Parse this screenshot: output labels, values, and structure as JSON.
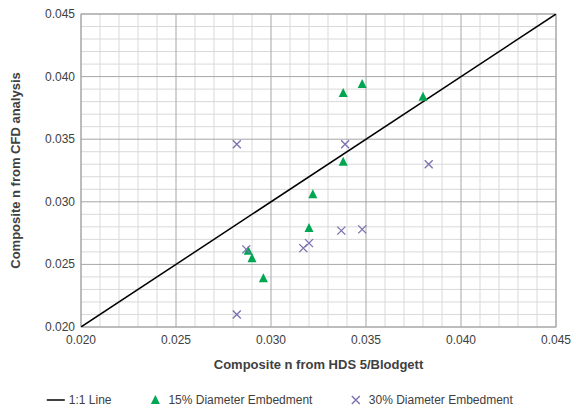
{
  "chart_data": {
    "type": "scatter",
    "x_label": "Composite n from HDS 5/Blodgett",
    "y_label": "Composite n from CFD analysis",
    "xlim": [
      0.02,
      0.045
    ],
    "ylim": [
      0.02,
      0.045
    ],
    "xticks": [
      {
        "value": 0.02,
        "label": "0.020"
      },
      {
        "value": 0.025,
        "label": "0.025"
      },
      {
        "value": 0.03,
        "label": "0.030"
      },
      {
        "value": 0.035,
        "label": "0.035"
      },
      {
        "value": 0.04,
        "label": "0.040"
      },
      {
        "value": 0.045,
        "label": "0.045"
      }
    ],
    "yticks": [
      {
        "value": 0.02,
        "label": "0.020"
      },
      {
        "value": 0.025,
        "label": "0.025"
      },
      {
        "value": 0.03,
        "label": "0.030"
      },
      {
        "value": 0.035,
        "label": "0.035"
      },
      {
        "value": 0.04,
        "label": "0.040"
      },
      {
        "value": 0.045,
        "label": "0.045"
      }
    ],
    "grid": true,
    "legend": "bottom",
    "series": [
      {
        "name": "1:1 Line",
        "type": "line",
        "color": "#000000",
        "line_style": "solid",
        "x": [
          0.02,
          0.045
        ],
        "values": [
          0.02,
          0.045
        ]
      },
      {
        "name": "15% Diameter Embedment",
        "type": "scatter",
        "color": "#00a651",
        "marker": "triangle",
        "x": [
          0.0288,
          0.029,
          0.0296,
          0.032,
          0.0322,
          0.0338,
          0.0338,
          0.0348,
          0.038
        ],
        "values": [
          0.0261,
          0.0255,
          0.0239,
          0.0279,
          0.0306,
          0.0332,
          0.0387,
          0.0394,
          0.0384
        ]
      },
      {
        "name": "30% Diameter Embedment",
        "type": "scatter",
        "color": "#7b6fae",
        "marker": "x",
        "x": [
          0.0282,
          0.0282,
          0.0287,
          0.0317,
          0.032,
          0.0337,
          0.0339,
          0.0348,
          0.0383
        ],
        "values": [
          0.0346,
          0.021,
          0.0262,
          0.0263,
          0.0267,
          0.0277,
          0.0346,
          0.0278,
          0.033
        ]
      }
    ]
  }
}
